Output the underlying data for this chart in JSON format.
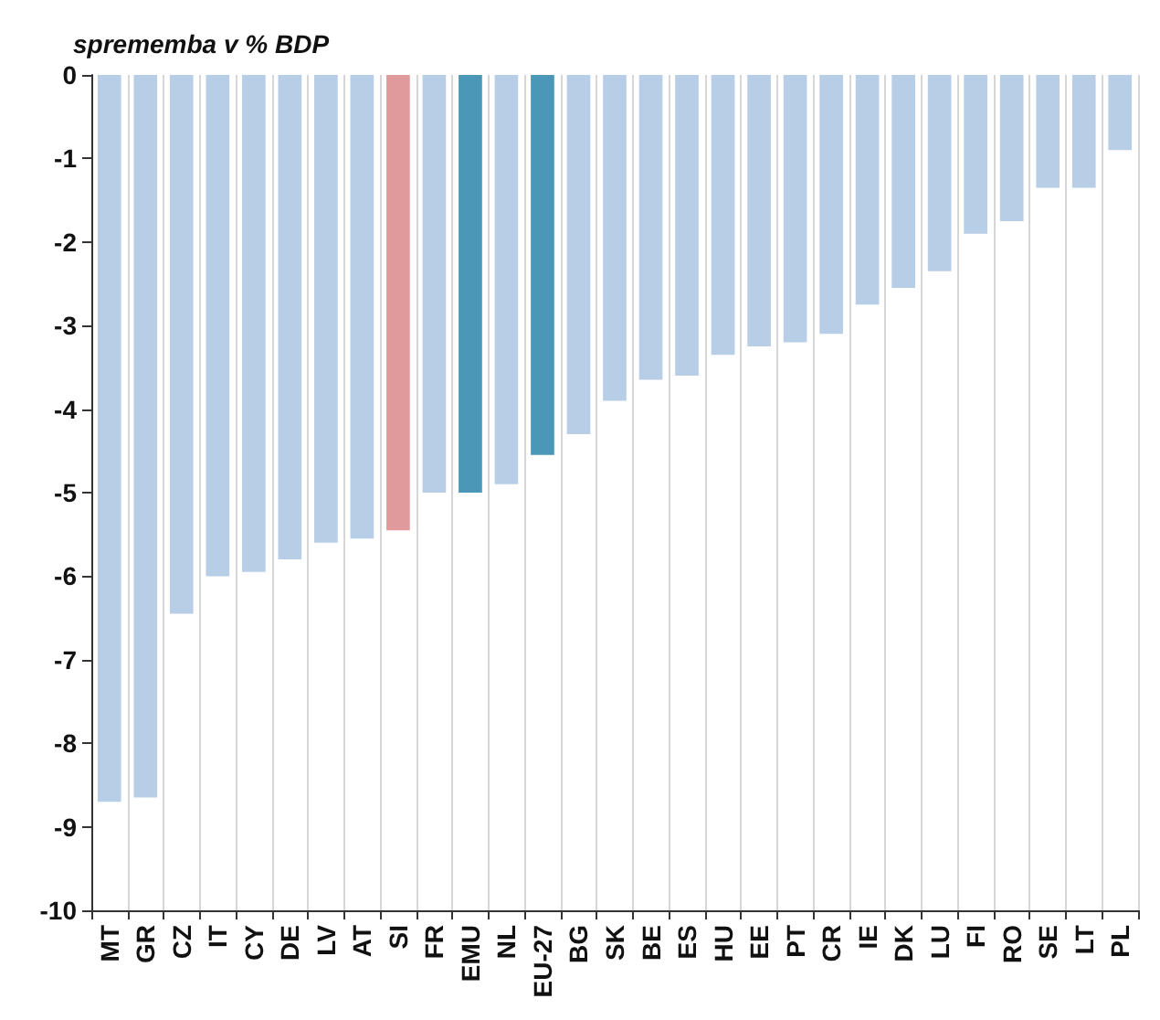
{
  "chart_data": {
    "type": "bar",
    "ylabel": "sprememba v % BDP",
    "categories": [
      "MT",
      "GR",
      "CZ",
      "IT",
      "CY",
      "DE",
      "LV",
      "AT",
      "SI",
      "FR",
      "EMU",
      "NL",
      "EU-27",
      "BG",
      "SK",
      "BE",
      "ES",
      "HU",
      "EE",
      "PT",
      "CR",
      "IE",
      "DK",
      "LU",
      "FI",
      "RO",
      "SE",
      "LT",
      "PL"
    ],
    "values": [
      -8.7,
      -8.65,
      -6.45,
      -6.0,
      -5.95,
      -5.8,
      -5.6,
      -5.55,
      -5.45,
      -5.0,
      -5.0,
      -4.9,
      -4.55,
      -4.3,
      -3.9,
      -3.65,
      -3.6,
      -3.35,
      -3.25,
      -3.2,
      -3.1,
      -2.75,
      -2.55,
      -2.35,
      -1.9,
      -1.75,
      -1.35,
      -1.35,
      -0.9
    ],
    "colors": [
      "#b8cee6",
      "#b8cee6",
      "#b8cee6",
      "#b8cee6",
      "#b8cee6",
      "#b8cee6",
      "#b8cee6",
      "#b8cee6",
      "#e09a9b",
      "#b8cee6",
      "#4a97b8",
      "#b8cee6",
      "#4a97b8",
      "#b8cee6",
      "#b8cee6",
      "#b8cee6",
      "#b8cee6",
      "#b8cee6",
      "#b8cee6",
      "#b8cee6",
      "#b8cee6",
      "#b8cee6",
      "#b8cee6",
      "#b8cee6",
      "#b8cee6",
      "#b8cee6",
      "#b8cee6",
      "#b8cee6",
      "#b8cee6"
    ],
    "ylim": [
      -10,
      0
    ],
    "yticks": [
      -10,
      -9,
      -8,
      -7,
      -6,
      -5,
      -4,
      -3,
      -2,
      -1,
      0
    ],
    "grid": "x"
  }
}
